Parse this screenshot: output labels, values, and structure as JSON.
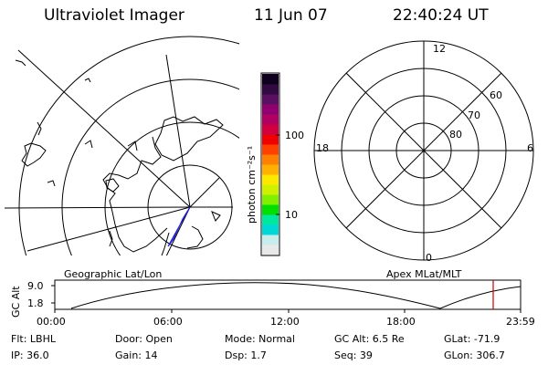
{
  "header": {
    "instrument": "Ultraviolet Imager",
    "date": "11 Jun 07",
    "time": "22:40:24 UT"
  },
  "colorbar": {
    "unit_label": "photon cm⁻²s⁻¹",
    "ticks": [
      "100",
      "10"
    ],
    "colors": [
      "#e8e8e8",
      "#c8ecec",
      "#00d8d8",
      "#00e8a0",
      "#00e000",
      "#80f000",
      "#d0f000",
      "#ffe800",
      "#ffb000",
      "#ff8000",
      "#ff4000",
      "#f00000",
      "#d00040",
      "#b00060",
      "#900070",
      "#5a1060",
      "#300a40",
      "#100020"
    ]
  },
  "left_panel": {
    "label": "Geographic Lat/Lon"
  },
  "right_panel": {
    "label": "Apex MLat/MLT",
    "mlt_labels": {
      "top": "12",
      "left": "18",
      "right": "6",
      "bottom": "0"
    },
    "lat_labels": [
      "60",
      "70",
      "80"
    ]
  },
  "altitude_plot": {
    "ylabel": "GC Alt",
    "yticks": [
      "9.0",
      "1.8"
    ],
    "xticks": [
      "00:00",
      "06:00",
      "12:00",
      "18:00",
      "23:59"
    ],
    "current_time_marker_color": "#cc0000"
  },
  "info": {
    "filter": "Flt: LBHL",
    "ip": "IP: 36.0",
    "door": "Door: Open",
    "gain": "Gain: 14",
    "mode": "Mode: Normal",
    "dsp": "Dsp:    1.7",
    "gc_alt": "GC Alt: 6.5 Re",
    "seq": "Seq: 39",
    "glat": "GLat: -71.9",
    "glon": "GLon: 306.7"
  }
}
